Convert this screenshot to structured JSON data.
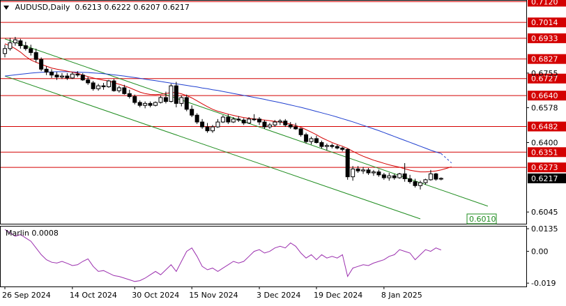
{
  "header": {
    "symbol": "AUDUSD,Daily",
    "ohlc": "0.6213 0.6222 0.6207 0.6217"
  },
  "indicator": {
    "title": "Marlin 0.0008"
  },
  "colors": {
    "candle_up_body": "#ffffff",
    "candle_down_body": "#000000",
    "candle_border": "#000000",
    "level_line": "#d40000",
    "level_label_bg": "#d40000",
    "ma_fast": "#d40000",
    "ma_slow": "#1f3fd0",
    "channel": "#1e8c1e",
    "oscillator": "#9b2fae",
    "current_price_bg": "#000000",
    "target_label_border": "#1e8c1e",
    "target_label_text": "#1e8c1e"
  },
  "chart_data": [
    {
      "type": "candlestick",
      "title": "AUDUSD,Daily",
      "timeframe": "Daily",
      "ylim": [
        0.5985,
        0.7125
      ],
      "y_ticks": [
        "0.6045",
        "0.6400",
        "0.6578",
        "0.6755"
      ],
      "x_tick_labels": [
        "26 Sep 2024",
        "14 Oct 2024",
        "30 Oct 2024",
        "15 Nov 2024",
        "3 Dec 2024",
        "19 Dec 2024",
        "8 Jan 2025"
      ],
      "horizontal_levels": [
        {
          "label": "0.7120",
          "value": 0.712
        },
        {
          "label": "0.7014",
          "value": 0.7014
        },
        {
          "label": "0.6933",
          "value": 0.6933
        },
        {
          "label": "0.6827",
          "value": 0.6827
        },
        {
          "label": "0.6727",
          "value": 0.6727
        },
        {
          "label": "0.6640",
          "value": 0.664
        },
        {
          "label": "0.6482",
          "value": 0.6482
        },
        {
          "label": "0.6351",
          "value": 0.6351
        },
        {
          "label": "0.6273",
          "value": 0.6273
        }
      ],
      "current_price": {
        "label": "0.6217",
        "value": 0.6217
      },
      "target_label": {
        "label": "0.6010",
        "value": 0.601
      },
      "candles": [
        [
          0.6855,
          0.69,
          0.6835,
          0.688
        ],
        [
          0.688,
          0.6935,
          0.687,
          0.691
        ],
        [
          0.691,
          0.694,
          0.6895,
          0.6925
        ],
        [
          0.692,
          0.693,
          0.688,
          0.6895
        ],
        [
          0.6895,
          0.6915,
          0.687,
          0.688
        ],
        [
          0.688,
          0.69,
          0.6845,
          0.686
        ],
        [
          0.686,
          0.688,
          0.681,
          0.6825
        ],
        [
          0.6825,
          0.6835,
          0.6765,
          0.6775
        ],
        [
          0.6775,
          0.679,
          0.6745,
          0.676
        ],
        [
          0.676,
          0.6775,
          0.673,
          0.6745
        ],
        [
          0.6745,
          0.676,
          0.672,
          0.6735
        ],
        [
          0.6735,
          0.6755,
          0.6725,
          0.674
        ],
        [
          0.674,
          0.6755,
          0.672,
          0.673
        ],
        [
          0.673,
          0.676,
          0.6725,
          0.675
        ],
        [
          0.675,
          0.6765,
          0.6735,
          0.6745
        ],
        [
          0.6745,
          0.6755,
          0.6715,
          0.672
        ],
        [
          0.672,
          0.6735,
          0.6695,
          0.6705
        ],
        [
          0.6705,
          0.6715,
          0.6665,
          0.6675
        ],
        [
          0.6675,
          0.67,
          0.6665,
          0.669
        ],
        [
          0.669,
          0.6705,
          0.667,
          0.6685
        ],
        [
          0.6685,
          0.672,
          0.668,
          0.6715
        ],
        [
          0.6715,
          0.6725,
          0.666,
          0.6665
        ],
        [
          0.6665,
          0.669,
          0.6655,
          0.668
        ],
        [
          0.668,
          0.6695,
          0.6645,
          0.665
        ],
        [
          0.665,
          0.667,
          0.6625,
          0.6635
        ],
        [
          0.6635,
          0.6645,
          0.6595,
          0.6605
        ],
        [
          0.6605,
          0.6615,
          0.658,
          0.659
        ],
        [
          0.659,
          0.661,
          0.6575,
          0.66
        ],
        [
          0.66,
          0.661,
          0.658,
          0.659
        ],
        [
          0.659,
          0.661,
          0.6585,
          0.6605
        ],
        [
          0.6605,
          0.664,
          0.66,
          0.663
        ],
        [
          0.663,
          0.666,
          0.66,
          0.661
        ],
        [
          0.661,
          0.67,
          0.6605,
          0.669
        ],
        [
          0.669,
          0.671,
          0.658,
          0.66
        ],
        [
          0.66,
          0.664,
          0.6585,
          0.663
        ],
        [
          0.663,
          0.6645,
          0.656,
          0.657
        ],
        [
          0.657,
          0.659,
          0.653,
          0.654
        ],
        [
          0.654,
          0.655,
          0.6495,
          0.6505
        ],
        [
          0.6505,
          0.652,
          0.647,
          0.648
        ],
        [
          0.648,
          0.65,
          0.645,
          0.646
        ],
        [
          0.646,
          0.649,
          0.645,
          0.648
        ],
        [
          0.648,
          0.652,
          0.6475,
          0.6505
        ],
        [
          0.6505,
          0.654,
          0.65,
          0.653
        ],
        [
          0.653,
          0.6545,
          0.6495,
          0.6505
        ],
        [
          0.6505,
          0.653,
          0.65,
          0.652
        ],
        [
          0.652,
          0.6535,
          0.6505,
          0.6515
        ],
        [
          0.6515,
          0.6525,
          0.649,
          0.65
        ],
        [
          0.65,
          0.653,
          0.6495,
          0.652
        ],
        [
          0.652,
          0.6545,
          0.651,
          0.652
        ],
        [
          0.652,
          0.653,
          0.649,
          0.6505
        ],
        [
          0.6505,
          0.6515,
          0.647,
          0.648
        ],
        [
          0.648,
          0.65,
          0.647,
          0.649
        ],
        [
          0.649,
          0.6515,
          0.648,
          0.6505
        ],
        [
          0.6505,
          0.652,
          0.649,
          0.651
        ],
        [
          0.651,
          0.652,
          0.648,
          0.649
        ],
        [
          0.649,
          0.6505,
          0.647,
          0.648
        ],
        [
          0.648,
          0.65,
          0.6465,
          0.647
        ],
        [
          0.647,
          0.6475,
          0.643,
          0.644
        ],
        [
          0.644,
          0.645,
          0.6395,
          0.6405
        ],
        [
          0.6405,
          0.643,
          0.639,
          0.642
        ],
        [
          0.642,
          0.6435,
          0.6395,
          0.64
        ],
        [
          0.64,
          0.641,
          0.637,
          0.638
        ],
        [
          0.638,
          0.6395,
          0.636,
          0.6385
        ],
        [
          0.6385,
          0.6395,
          0.637,
          0.638
        ],
        [
          0.638,
          0.639,
          0.6365,
          0.6372
        ],
        [
          0.6372,
          0.6378,
          0.6355,
          0.6365
        ],
        [
          0.6365,
          0.637,
          0.621,
          0.6225
        ],
        [
          0.6225,
          0.628,
          0.6205,
          0.6265
        ],
        [
          0.6265,
          0.628,
          0.6245,
          0.6255
        ],
        [
          0.6255,
          0.6275,
          0.624,
          0.626
        ],
        [
          0.626,
          0.627,
          0.6235,
          0.6245
        ],
        [
          0.6245,
          0.626,
          0.623,
          0.625
        ],
        [
          0.625,
          0.6262,
          0.6225,
          0.6235
        ],
        [
          0.6235,
          0.6245,
          0.621,
          0.622
        ],
        [
          0.622,
          0.6245,
          0.6205,
          0.623
        ],
        [
          0.623,
          0.624,
          0.621,
          0.622
        ],
        [
          0.622,
          0.6245,
          0.6215,
          0.624
        ],
        [
          0.624,
          0.6295,
          0.62,
          0.6215
        ],
        [
          0.6215,
          0.6235,
          0.619,
          0.62
        ],
        [
          0.62,
          0.6215,
          0.617,
          0.618
        ],
        [
          0.618,
          0.6205,
          0.616,
          0.6195
        ],
        [
          0.6195,
          0.6215,
          0.6185,
          0.621
        ],
        [
          0.621,
          0.626,
          0.6205,
          0.624
        ],
        [
          0.624,
          0.6245,
          0.6205,
          0.6213
        ],
        [
          0.6213,
          0.6222,
          0.6207,
          0.6217
        ]
      ],
      "ma_fast": [
        0.6905,
        0.6895,
        0.688,
        0.6862,
        0.684,
        0.6822,
        0.681,
        0.68,
        0.679,
        0.6781,
        0.6775,
        0.677,
        0.6765,
        0.676,
        0.6755,
        0.6745,
        0.6737,
        0.673,
        0.6724,
        0.6719,
        0.6715,
        0.6706,
        0.6698,
        0.669,
        0.668,
        0.6669,
        0.6658,
        0.665,
        0.6646,
        0.6645,
        0.6647,
        0.665,
        0.6656,
        0.6655,
        0.6649,
        0.664,
        0.6628,
        0.6613,
        0.6598,
        0.6583,
        0.657,
        0.656,
        0.6553,
        0.6545,
        0.6539,
        0.6533,
        0.6528,
        0.6524,
        0.6521,
        0.6518,
        0.6515,
        0.6512,
        0.6508,
        0.6504,
        0.65,
        0.6494,
        0.6487,
        0.6478,
        0.6466,
        0.6453,
        0.644,
        0.6425,
        0.6412,
        0.64,
        0.639,
        0.6381,
        0.637,
        0.6355,
        0.6342,
        0.633,
        0.632,
        0.631,
        0.6302,
        0.6294,
        0.6286,
        0.628,
        0.6274,
        0.6266,
        0.6259,
        0.6254,
        0.625,
        0.625,
        0.6252,
        0.6255,
        0.626
      ],
      "ma_slow": [
        0.674,
        0.6743,
        0.6746,
        0.6749,
        0.6752,
        0.6755,
        0.6757,
        0.6759,
        0.676,
        0.6761,
        0.6762,
        0.6762,
        0.6762,
        0.6761,
        0.676,
        0.6759,
        0.6758,
        0.6756,
        0.6754,
        0.6752,
        0.6749,
        0.6746,
        0.6743,
        0.674,
        0.6736,
        0.6732,
        0.6728,
        0.6724,
        0.672,
        0.6716,
        0.6712,
        0.6708,
        0.6704,
        0.67,
        0.6696,
        0.6692,
        0.6688,
        0.6684,
        0.6679,
        0.6675,
        0.667,
        0.6666,
        0.6661,
        0.6656,
        0.6651,
        0.6646,
        0.6641,
        0.6636,
        0.6631,
        0.6626,
        0.6621,
        0.6615,
        0.661,
        0.6604,
        0.6598,
        0.6592,
        0.6586,
        0.658,
        0.6573,
        0.6566,
        0.6559,
        0.6552,
        0.6545,
        0.6538,
        0.653,
        0.6522,
        0.6514,
        0.6506,
        0.6497,
        0.6488,
        0.6479,
        0.647,
        0.6461,
        0.6451,
        0.6441,
        0.6431,
        0.6421,
        0.6411,
        0.6401,
        0.6391,
        0.6381,
        0.6371,
        0.6361,
        0.6352,
        0.6344
      ],
      "ma_slow_projection": [
        0.6344,
        0.632,
        0.6296
      ],
      "ma_fast_projection": [
        0.626,
        0.6268,
        0.6276
      ],
      "channel_upper": [
        [
          0,
          0.693
        ],
        [
          93,
          0.6075
        ]
      ],
      "channel_lower": [
        [
          0,
          0.674
        ],
        [
          80,
          0.601
        ]
      ],
      "oscillator": {
        "name": "Marlin",
        "value": 0.0008,
        "y_ticks": [
          "0.0135",
          "0.00",
          "-0.019"
        ],
        "ylim": [
          -0.021,
          0.0148
        ],
        "values": [
          0.013,
          0.011,
          0.009,
          0.01,
          0.008,
          0.006,
          0.002,
          -0.002,
          -0.005,
          -0.0065,
          -0.007,
          -0.006,
          -0.0072,
          -0.0085,
          -0.008,
          -0.006,
          -0.0045,
          -0.009,
          -0.012,
          -0.0115,
          -0.013,
          -0.0145,
          -0.015,
          -0.016,
          -0.017,
          -0.018,
          -0.0175,
          -0.016,
          -0.014,
          -0.012,
          -0.014,
          -0.011,
          -0.008,
          -0.012,
          -0.006,
          0.0,
          0.002,
          -0.003,
          -0.009,
          -0.011,
          -0.01,
          -0.012,
          -0.01,
          -0.008,
          -0.006,
          -0.007,
          -0.006,
          -0.003,
          0.0,
          0.001,
          -0.001,
          0.0,
          0.002,
          0.003,
          0.002,
          0.005,
          0.003,
          -0.001,
          -0.004,
          -0.002,
          -0.005,
          -0.002,
          -0.004,
          -0.003,
          -0.004,
          -0.002,
          -0.015,
          -0.01,
          -0.009,
          -0.008,
          -0.0085,
          -0.007,
          -0.006,
          -0.005,
          -0.003,
          -0.002,
          0.001,
          0.0,
          -0.001,
          -0.005,
          -0.002,
          0.001,
          0.0,
          0.002,
          0.0008
        ]
      }
    }
  ]
}
